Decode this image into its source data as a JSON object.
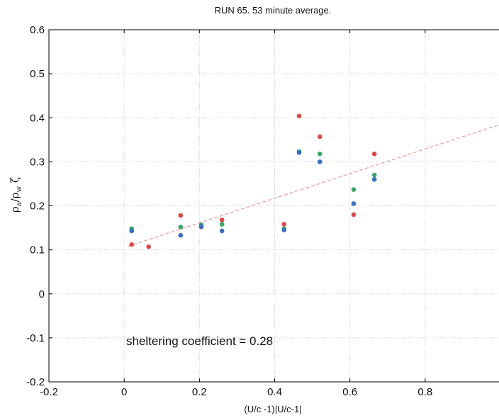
{
  "chart_data": {
    "type": "scatter",
    "title": "RUN 65.  53 minute average.",
    "xlabel": "(U/c -1)|U/c-1|",
    "ylabel": "ρ_a/ρ_w ζ",
    "xlim": [
      -0.2,
      1.0
    ],
    "ylim": [
      -0.2,
      0.6
    ],
    "xticks": [
      -0.2,
      0,
      0.2,
      0.4,
      0.6,
      0.8
    ],
    "xtick_labels": [
      "-0.2",
      "0",
      "0.2",
      "0.4",
      "0.6",
      "0.8"
    ],
    "yticks": [
      -0.2,
      -0.1,
      0,
      0.1,
      0.2,
      0.3,
      0.4,
      0.5,
      0.6
    ],
    "ytick_labels": [
      "-0.2",
      "-0.1",
      "0",
      "0.1",
      "0.2",
      "0.3",
      "0.4",
      "0.5",
      "0.6"
    ],
    "grid": true,
    "annotation": "sheltering coefficient = 0.28",
    "series": [
      {
        "color": "#d84a4a",
        "marker": "dot",
        "points": [
          [
            0.02,
            0.112
          ],
          [
            0.065,
            0.107
          ],
          [
            0.15,
            0.178
          ],
          [
            0.205,
            0.152
          ],
          [
            0.26,
            0.168
          ],
          [
            0.425,
            0.158
          ],
          [
            0.465,
            0.404
          ],
          [
            0.52,
            0.357
          ],
          [
            0.61,
            0.18
          ],
          [
            0.665,
            0.318
          ]
        ]
      },
      {
        "color": "#3aa66a",
        "marker": "dot",
        "points": [
          [
            0.02,
            0.148
          ],
          [
            0.15,
            0.152
          ],
          [
            0.205,
            0.157
          ],
          [
            0.26,
            0.158
          ],
          [
            0.425,
            0.148
          ],
          [
            0.465,
            0.323
          ],
          [
            0.52,
            0.318
          ],
          [
            0.61,
            0.237
          ],
          [
            0.665,
            0.27
          ]
        ]
      },
      {
        "color": "#3a6fbf",
        "marker": "dot",
        "points": [
          [
            0.02,
            0.143
          ],
          [
            0.15,
            0.133
          ],
          [
            0.205,
            0.153
          ],
          [
            0.26,
            0.143
          ],
          [
            0.425,
            0.145
          ],
          [
            0.465,
            0.321
          ],
          [
            0.52,
            0.3
          ],
          [
            0.61,
            0.205
          ],
          [
            0.665,
            0.26
          ]
        ]
      }
    ],
    "fit_line": {
      "color": "#e8a0a0",
      "style": "dashed",
      "points": [
        [
          0.01,
          0.108
        ],
        [
          1.0,
          0.385
        ]
      ]
    }
  }
}
